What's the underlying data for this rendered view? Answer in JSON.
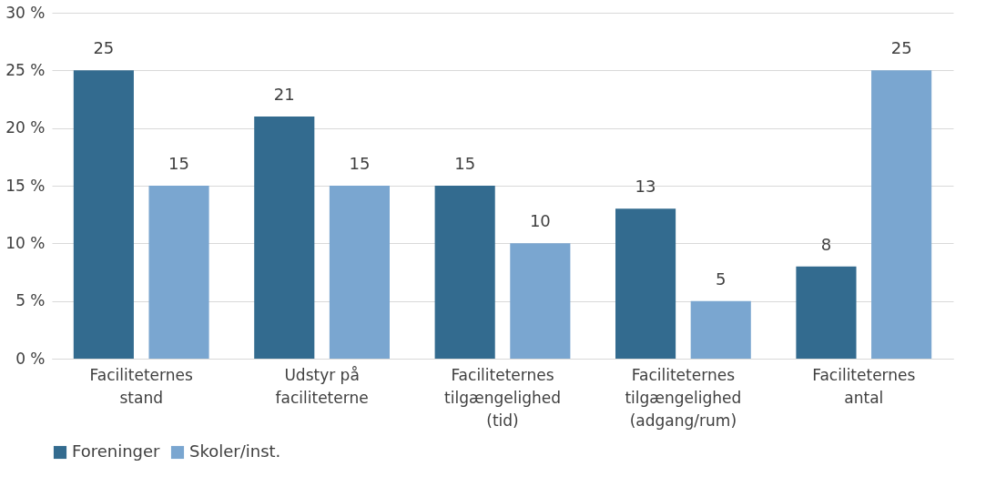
{
  "chart_data": {
    "type": "bar",
    "categories": [
      "Faciliteternes\nstand",
      "Udstyr på\nfaciliteterne",
      "Faciliteternes\ntilgængelighed\n(tid)",
      "Faciliteternes\ntilgængelighed\n(adgang/rum)",
      "Faciliteternes\nantal"
    ],
    "series": [
      {
        "name": "Foreninger",
        "color": "#336b8f",
        "values": [
          25,
          21,
          15,
          13,
          8
        ]
      },
      {
        "name": "Skoler/inst.",
        "color": "#7aa6d0",
        "values": [
          15,
          15,
          10,
          5,
          25
        ]
      }
    ],
    "ylim": [
      0,
      30
    ],
    "yticks": [
      {
        "value": 0,
        "label": "0 %"
      },
      {
        "value": 5,
        "label": "5 %"
      },
      {
        "value": 10,
        "label": "10 %"
      },
      {
        "value": 15,
        "label": "15 %"
      },
      {
        "value": 20,
        "label": "20 %"
      },
      {
        "value": 25,
        "label": "25 %"
      },
      {
        "value": 30,
        "label": "30 %"
      }
    ],
    "grid": "y",
    "legend": "bottom",
    "data_labels": true
  }
}
